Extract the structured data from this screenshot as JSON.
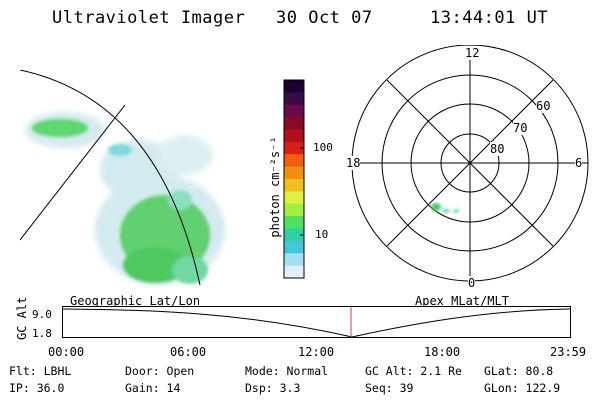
{
  "header": {
    "instrument": "Ultraviolet Imager",
    "date": "30 Oct 07",
    "time": "13:44:01 UT"
  },
  "colorbar": {
    "unit_label": "photon cm⁻²s⁻¹",
    "ticks": [
      "100",
      "10"
    ],
    "colors": [
      "#1a0033",
      "#3a0a4a",
      "#6a0a4a",
      "#8a0a2a",
      "#b0101a",
      "#d8201a",
      "#f06010",
      "#f09010",
      "#f0c020",
      "#e0f040",
      "#a0f040",
      "#50e060",
      "#30d0a0",
      "#40c8d8",
      "#a0e0f0",
      "#e0f0f8"
    ]
  },
  "polar_plot": {
    "hour_labels": [
      "12",
      "18",
      "6",
      "0"
    ],
    "lat_labels": [
      "60",
      "70",
      "80"
    ]
  },
  "timeline": {
    "left_title": "Geographic Lat/Lon",
    "right_title": "Apex MLat/MLT",
    "axis_label": "GC Alt",
    "y_ticks": [
      "9.0",
      "1.8"
    ],
    "x_ticks": [
      "00:00",
      "06:00",
      "12:00",
      "18:00",
      "23:59"
    ]
  },
  "footer": {
    "row1": {
      "filter": "Flt: LBHL",
      "door": "Door: Open",
      "mode": "Mode: Normal",
      "gc_alt": "GC Alt: 2.1 Re",
      "glat": "GLat:  80.8"
    },
    "row2": {
      "ip": "IP: 36.0",
      "gain": "Gain: 14",
      "dsp": "Dsp:    3.3",
      "seq": "Seq: 39",
      "glon": "GLon: 122.9"
    }
  }
}
